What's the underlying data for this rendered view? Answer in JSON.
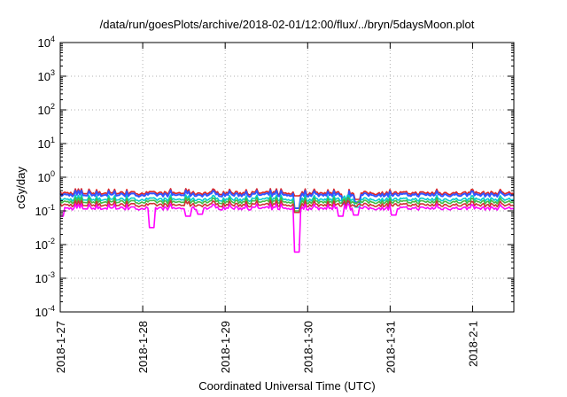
{
  "chart_data": {
    "type": "line",
    "title": "/data/run/goesPlots/archive/2018-02-01/12:00/flux/../bryn/5daysMoon.plot",
    "xlabel": "Coordinated Universal Time (UTC)",
    "ylabel": "cGy/day",
    "yscale": "log",
    "ylim": [
      0.0001,
      10000
    ],
    "y_ticks": [
      {
        "value": 0.0001,
        "base": "10",
        "exp": "-4"
      },
      {
        "value": 0.001,
        "base": "10",
        "exp": "-3"
      },
      {
        "value": 0.01,
        "base": "10",
        "exp": "-2"
      },
      {
        "value": 0.1,
        "base": "10",
        "exp": "-1"
      },
      {
        "value": 1,
        "base": "10",
        "exp": "0"
      },
      {
        "value": 10,
        "base": "10",
        "exp": "1"
      },
      {
        "value": 100,
        "base": "10",
        "exp": "2"
      },
      {
        "value": 1000,
        "base": "10",
        "exp": "3"
      },
      {
        "value": 10000,
        "base": "10",
        "exp": "4"
      }
    ],
    "xlim": [
      "2018-01-27T00:00",
      "2018-02-01T12:00"
    ],
    "x_ticks": [
      "2018-1-27",
      "2018-1-28",
      "2018-1-29",
      "2018-1-30",
      "2018-1-31",
      "2018-2-1"
    ],
    "grid": true,
    "legend": "none",
    "series": [
      {
        "color": "#dd2222",
        "base": 0.34,
        "dips": [
          [
            "2018-01-29T21:00",
            0.28
          ],
          [
            "2018-01-30T11:00",
            0.2
          ],
          [
            "2018-01-30T14:30",
            0.22
          ]
        ]
      },
      {
        "color": "#3355ff",
        "base": 0.3,
        "dips": [
          [
            "2018-01-29T21:00",
            0.12
          ],
          [
            "2018-01-30T11:00",
            0.16
          ],
          [
            "2018-01-30T14:30",
            0.18
          ]
        ]
      },
      {
        "color": "#00cccc",
        "base": 0.22,
        "dips": [
          [
            "2018-01-29T21:00",
            0.09
          ],
          [
            "2018-01-30T14:30",
            0.13
          ]
        ]
      },
      {
        "color": "#44bb44",
        "base": 0.185,
        "dips": [
          [
            "2018-01-29T21:00",
            0.1
          ]
        ]
      },
      {
        "color": "#cc3333",
        "base": 0.15,
        "dips": [
          [
            "2018-01-29T21:00",
            0.09
          ]
        ]
      },
      {
        "color": "#ff00ff",
        "base": 0.12,
        "dips": [
          [
            "2018-01-27T00:20",
            0.07
          ],
          [
            "2018-01-28T02:30",
            0.032
          ],
          [
            "2018-01-28T13:00",
            0.07
          ],
          [
            "2018-01-28T16:30",
            0.08
          ],
          [
            "2018-01-29T21:00",
            0.006
          ],
          [
            "2018-01-30T09:30",
            0.07
          ],
          [
            "2018-01-30T14:00",
            0.075
          ],
          [
            "2018-01-31T01:00",
            0.075
          ]
        ]
      }
    ]
  }
}
